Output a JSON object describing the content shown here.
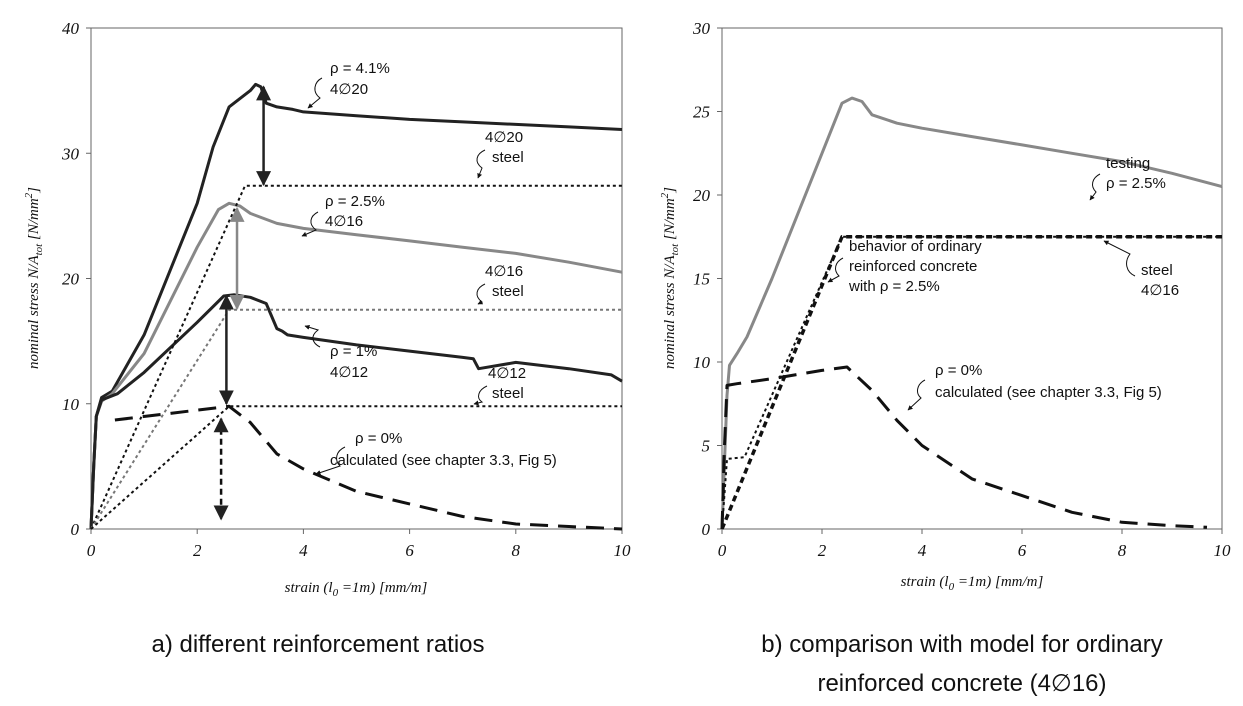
{
  "chart_data": [
    {
      "panel": "a",
      "type": "line",
      "caption": "a) different reinforcement ratios",
      "xlabel": "strain (l 0 =1m) [mm/m]",
      "xlabel_main": "strain (l",
      "xlabel_sub": "0",
      "xlabel_rest": " =1m) [mm/m]",
      "ylabel": "nominal stress N/A tot [N/mm 2 ]",
      "ylabel_main": "nominal stress N/A",
      "ylabel_sub": "tot",
      "ylabel_rest": " [N/mm",
      "ylabel_sup": "2",
      "ylabel_end": "]",
      "xlim": [
        0,
        10
      ],
      "ylim": [
        0,
        40
      ],
      "xticks": [
        "0",
        "2",
        "4",
        "6",
        "8",
        "10"
      ],
      "yticks": [
        "0",
        "10",
        "20",
        "30",
        "40"
      ],
      "grid": false,
      "series": [
        {
          "name": "ρ = 4.1% 4∅20",
          "color": "#222222",
          "style": "solid",
          "x": [
            0,
            0.05,
            0.1,
            0.2,
            0.4,
            1,
            2,
            2.3,
            2.6,
            3.0,
            3.1,
            3.2,
            3.3,
            3.5,
            3.8,
            4,
            5,
            6,
            7,
            8,
            9,
            10
          ],
          "y": [
            0,
            5,
            9,
            10.5,
            11,
            15.5,
            26,
            30.5,
            33.7,
            35,
            35.5,
            35.3,
            34,
            33.7,
            33.5,
            33.3,
            33,
            32.7,
            32.5,
            32.3,
            32.1,
            31.9
          ]
        },
        {
          "name": "ρ = 2.5% 4∅16",
          "color": "#888888",
          "style": "solid",
          "x": [
            0,
            0.05,
            0.1,
            0.2,
            0.4,
            1,
            2,
            2.4,
            2.6,
            2.8,
            3.0,
            3.5,
            4,
            5,
            6,
            7,
            8,
            9,
            10
          ],
          "y": [
            0,
            5,
            9,
            10.2,
            10.8,
            14,
            22.5,
            25.5,
            26,
            25.8,
            25.2,
            24.4,
            24,
            23.5,
            23,
            22.5,
            22,
            21.3,
            20.5
          ]
        },
        {
          "name": "ρ = 1% 4∅12",
          "color": "#222222",
          "style": "solid",
          "x": [
            0,
            0.05,
            0.1,
            0.2,
            0.5,
            1,
            2,
            2.5,
            2.7,
            3.0,
            3.3,
            3.5,
            3.6,
            3.7,
            4,
            5,
            6,
            7,
            7.2,
            7.3,
            8,
            9,
            9.8,
            10
          ],
          "y": [
            0,
            5,
            9,
            10.3,
            10.8,
            12.5,
            16.5,
            18.6,
            18.7,
            18.5,
            18,
            16,
            15.8,
            15.5,
            15.3,
            14.7,
            14.2,
            13.7,
            13.6,
            12.8,
            13.3,
            12.8,
            12.3,
            11.8
          ]
        },
        {
          "name": "ρ = 0% calculated (see chapter 3.3, Fig 5)",
          "color": "#111111",
          "style": "longdash",
          "x": [
            0.45,
            2.6,
            3.0,
            3.5,
            4,
            5,
            6,
            7,
            8,
            9,
            10
          ],
          "y": [
            8.7,
            9.8,
            8.5,
            6.0,
            4.8,
            3.0,
            2.0,
            1.0,
            0.4,
            0.2,
            0.0
          ]
        },
        {
          "name": "4∅20 steel",
          "color": "#111111",
          "style": "dotted",
          "x": [
            0,
            2.9,
            10
          ],
          "y": [
            0,
            27.4,
            27.4
          ]
        },
        {
          "name": "4∅16 steel",
          "color": "#777777",
          "style": "dotted",
          "x": [
            0,
            2.6,
            10
          ],
          "y": [
            0,
            17.5,
            17.5
          ]
        },
        {
          "name": "4∅12 steel",
          "color": "#111111",
          "style": "dotted",
          "x": [
            0,
            2.6,
            10
          ],
          "y": [
            0,
            9.8,
            9.8
          ]
        }
      ],
      "arrows": [
        {
          "x": 3.25,
          "y1": 35.3,
          "y2": 27.5,
          "color": "#222222",
          "dashed": false
        },
        {
          "x": 2.75,
          "y1": 25.6,
          "y2": 17.6,
          "color": "#888888",
          "dashed": false
        },
        {
          "x": 2.55,
          "y1": 18.6,
          "y2": 10.0,
          "color": "#222222",
          "dashed": false
        },
        {
          "x": 2.45,
          "y1": 8.8,
          "y2": 0.8,
          "color": "#111111",
          "dashed": true
        }
      ],
      "annotations": [
        {
          "lines": [
            "ρ = 4.1%",
            "4∅20"
          ]
        },
        {
          "lines": [
            "4∅20",
            "steel"
          ]
        },
        {
          "lines": [
            "ρ = 2.5%",
            "4∅16"
          ]
        },
        {
          "lines": [
            "4∅16",
            "steel"
          ]
        },
        {
          "lines": [
            "ρ = 1%",
            "4∅12"
          ]
        },
        {
          "lines": [
            "4∅12",
            "steel"
          ]
        },
        {
          "lines": [
            "ρ = 0%",
            "calculated (see chapter 3.3, Fig 5)"
          ]
        }
      ]
    },
    {
      "panel": "b",
      "type": "line",
      "caption_lines": [
        "b) comparison with model for ordinary",
        "reinforced concrete (4∅16)"
      ],
      "xlabel": "strain (l 0 =1m) [mm/m]",
      "xlabel_main": "strain (l",
      "xlabel_sub": "0",
      "xlabel_rest": " =1m) [mm/m]",
      "ylabel": "nominal stress N/A tot [N/mm 2 ]",
      "ylabel_main": "nominal stress N/A",
      "ylabel_sub": "tot",
      "ylabel_rest": " [N/mm",
      "ylabel_sup": "2",
      "ylabel_end": "]",
      "xlim": [
        0,
        10
      ],
      "ylim": [
        0,
        30
      ],
      "xticks": [
        "0",
        "2",
        "4",
        "6",
        "8",
        "10"
      ],
      "yticks": [
        "0",
        "5",
        "10",
        "15",
        "20",
        "25",
        "30"
      ],
      "grid": false,
      "series": [
        {
          "name": "testing ρ = 2.5%",
          "color": "#888888",
          "style": "solid",
          "x": [
            0,
            0.05,
            0.1,
            0.15,
            0.3,
            0.5,
            1,
            2,
            2.4,
            2.6,
            2.8,
            3.0,
            3.5,
            4,
            5,
            6,
            7,
            8,
            9,
            10
          ],
          "y": [
            0,
            4,
            8,
            9.8,
            10.5,
            11.5,
            15,
            22.5,
            25.5,
            25.8,
            25.6,
            24.8,
            24.3,
            24,
            23.5,
            23,
            22.5,
            22,
            21.3,
            20.5
          ]
        },
        {
          "name": "steel 4∅16",
          "color": "#111111",
          "style": "shortdash",
          "x": [
            0,
            2.4,
            10
          ],
          "y": [
            0,
            17.5,
            17.5
          ]
        },
        {
          "name": "behavior of ordinary reinforced concrete with ρ = 2.5%",
          "color": "#111111",
          "style": "dotted",
          "x": [
            0,
            0.1,
            0.45,
            2.4,
            10
          ],
          "y": [
            0,
            4.2,
            4.3,
            17.5,
            17.5
          ]
        },
        {
          "name": "ρ = 0% calculated (see chapter 3.3, Fig 5)",
          "color": "#111111",
          "style": "longdash",
          "x": [
            0,
            0.05,
            0.1,
            0.3,
            1,
            2,
            2.5,
            3,
            3.5,
            4,
            5,
            6,
            7,
            8,
            9,
            9.7
          ],
          "y": [
            0,
            5,
            8.6,
            8.7,
            9.0,
            9.5,
            9.7,
            8.3,
            6.5,
            5.0,
            3.0,
            2.0,
            1.0,
            0.4,
            0.2,
            0.1
          ]
        }
      ],
      "annotations": [
        {
          "lines": [
            "testing",
            "ρ = 2.5%"
          ]
        },
        {
          "lines": [
            "behavior of ordinary",
            "reinforced concrete",
            "with ρ = 2.5%"
          ]
        },
        {
          "lines": [
            "steel",
            "4∅16"
          ]
        },
        {
          "lines": [
            "ρ = 0%",
            "calculated (see chapter 3.3, Fig 5)"
          ]
        }
      ]
    }
  ]
}
